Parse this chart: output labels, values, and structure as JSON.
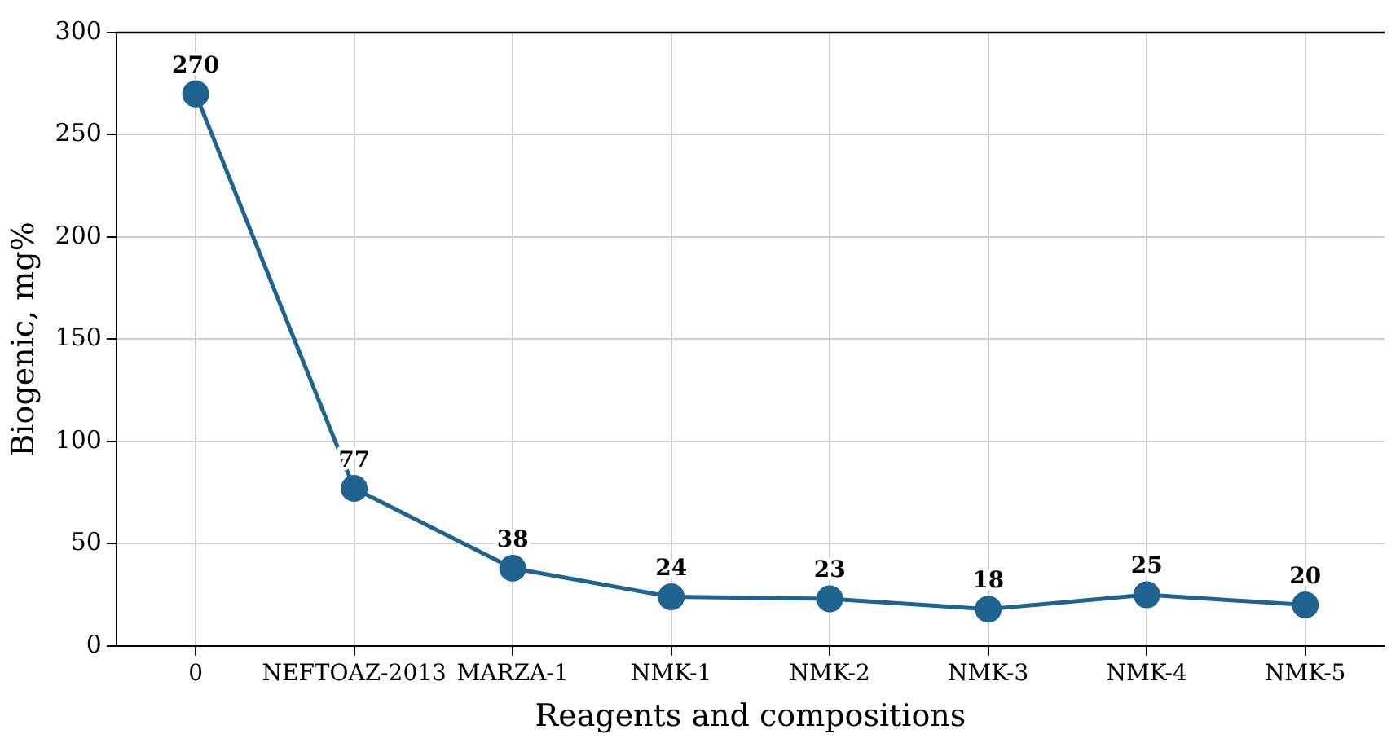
{
  "chart_data": {
    "type": "line",
    "xlabel": "Reagents and compositions",
    "ylabel": "Biogenic, mg%",
    "categories": [
      "0",
      "NEFTOAZ-2013",
      "MARZA-1",
      "NMK-1",
      "NMK-2",
      "NMK-3",
      "NMK-4",
      "NMK-5"
    ],
    "series": [
      {
        "color": "#1f6391",
        "values": [
          270,
          77,
          38,
          24,
          23,
          18,
          25,
          20
        ]
      }
    ],
    "ylim": [
      0,
      300
    ],
    "yticks": [
      0,
      50,
      100,
      150,
      200,
      250,
      300
    ],
    "grid": true,
    "legend": false,
    "marker": "circle",
    "line_style": "solid",
    "data_labels": true
  }
}
